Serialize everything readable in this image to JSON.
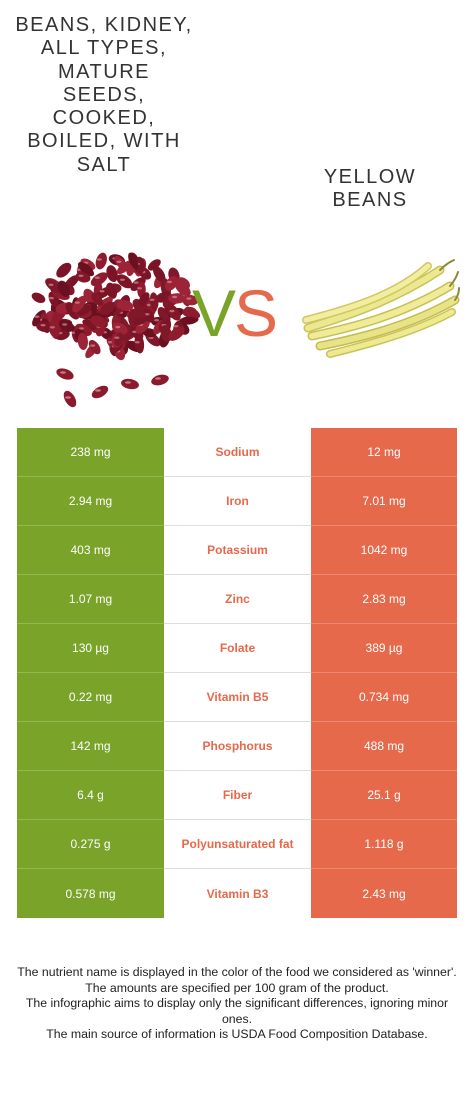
{
  "food_left": {
    "title": "Beans, kidney, all types, mature seeds, cooked, boiled, with salt",
    "color": "#7aa329"
  },
  "food_right": {
    "title": "Yellow beans",
    "color": "#e5694a"
  },
  "vs": {
    "v": "V",
    "s": "S"
  },
  "rows": [
    {
      "nutrient": "Sodium",
      "left": "238 mg",
      "right": "12 mg"
    },
    {
      "nutrient": "Iron",
      "left": "2.94 mg",
      "right": "7.01 mg"
    },
    {
      "nutrient": "Potassium",
      "left": "403 mg",
      "right": "1042 mg"
    },
    {
      "nutrient": "Zinc",
      "left": "1.07 mg",
      "right": "2.83 mg"
    },
    {
      "nutrient": "Folate",
      "left": "130 µg",
      "right": "389 µg"
    },
    {
      "nutrient": "Vitamin B5",
      "left": "0.22 mg",
      "right": "0.734 mg"
    },
    {
      "nutrient": "Phosphorus",
      "left": "142 mg",
      "right": "488 mg"
    },
    {
      "nutrient": "Fiber",
      "left": "6.4 g",
      "right": "25.1 g"
    },
    {
      "nutrient": "Polyunsaturated fat",
      "left": "0.275 g",
      "right": "1.118 g"
    },
    {
      "nutrient": "Vitamin B3",
      "left": "0.578 mg",
      "right": "2.43 mg"
    }
  ],
  "footer": {
    "line1": "The nutrient name is displayed in the color of the food we considered as 'winner'.",
    "line2": "The amounts are specified per 100 gram of the product.",
    "line3": "The infographic aims to display only the significant differences, ignoring minor ones.",
    "line4": "The main source of information is USDA Food Composition Database."
  }
}
